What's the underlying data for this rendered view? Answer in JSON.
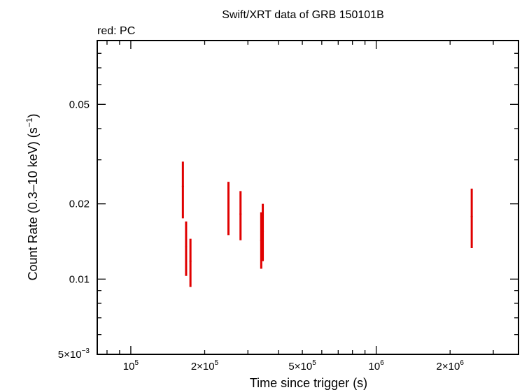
{
  "chart_data": {
    "type": "scatter",
    "title": "Swift/XRT data of GRB 150101B",
    "subtitle": "red: PC",
    "xlabel": "Time since trigger (s)",
    "ylabel_main": "Count Rate (0.3–10 keV) (s",
    "ylabel_sup": "−1",
    "ylabel_close": ")",
    "x_scale": "log",
    "y_scale": "log",
    "xlim": [
      73000,
      3800000
    ],
    "ylim": [
      0.005,
      0.09
    ],
    "x_ticks": [
      {
        "value": 100000,
        "mant": "10",
        "exp": "5"
      },
      {
        "value": 200000,
        "mant": "2×10",
        "exp": "5"
      },
      {
        "value": 500000,
        "mant": "5×10",
        "exp": "5"
      },
      {
        "value": 1000000,
        "mant": "10",
        "exp": "6"
      },
      {
        "value": 2000000,
        "mant": "2×10",
        "exp": "6"
      }
    ],
    "y_ticks": [
      {
        "value": 0.005,
        "mant": "5×10",
        "exp": "−3"
      },
      {
        "value": 0.01,
        "mant": "0.01",
        "exp": ""
      },
      {
        "value": 0.02,
        "mant": "0.02",
        "exp": ""
      },
      {
        "value": 0.05,
        "mant": "0.05",
        "exp": ""
      }
    ],
    "grid": false,
    "series": [
      {
        "color": "#e00000",
        "points": [
          {
            "x": 163000,
            "y": 0.0235,
            "ylo": 0.0175,
            "yhi": 0.0295
          },
          {
            "x": 168000,
            "y": 0.0135,
            "ylo": 0.0103,
            "yhi": 0.017
          },
          {
            "x": 175000,
            "y": 0.0118,
            "ylo": 0.0093,
            "yhi": 0.0145
          },
          {
            "x": 250000,
            "y": 0.0195,
            "ylo": 0.015,
            "yhi": 0.0245
          },
          {
            "x": 280000,
            "y": 0.0182,
            "ylo": 0.0143,
            "yhi": 0.0225
          },
          {
            "x": 340000,
            "y": 0.0143,
            "ylo": 0.011,
            "yhi": 0.0185
          },
          {
            "x": 345000,
            "y": 0.0155,
            "ylo": 0.0118,
            "yhi": 0.02
          },
          {
            "x": 2450000,
            "y": 0.0178,
            "ylo": 0.0133,
            "yhi": 0.023
          }
        ]
      }
    ]
  }
}
